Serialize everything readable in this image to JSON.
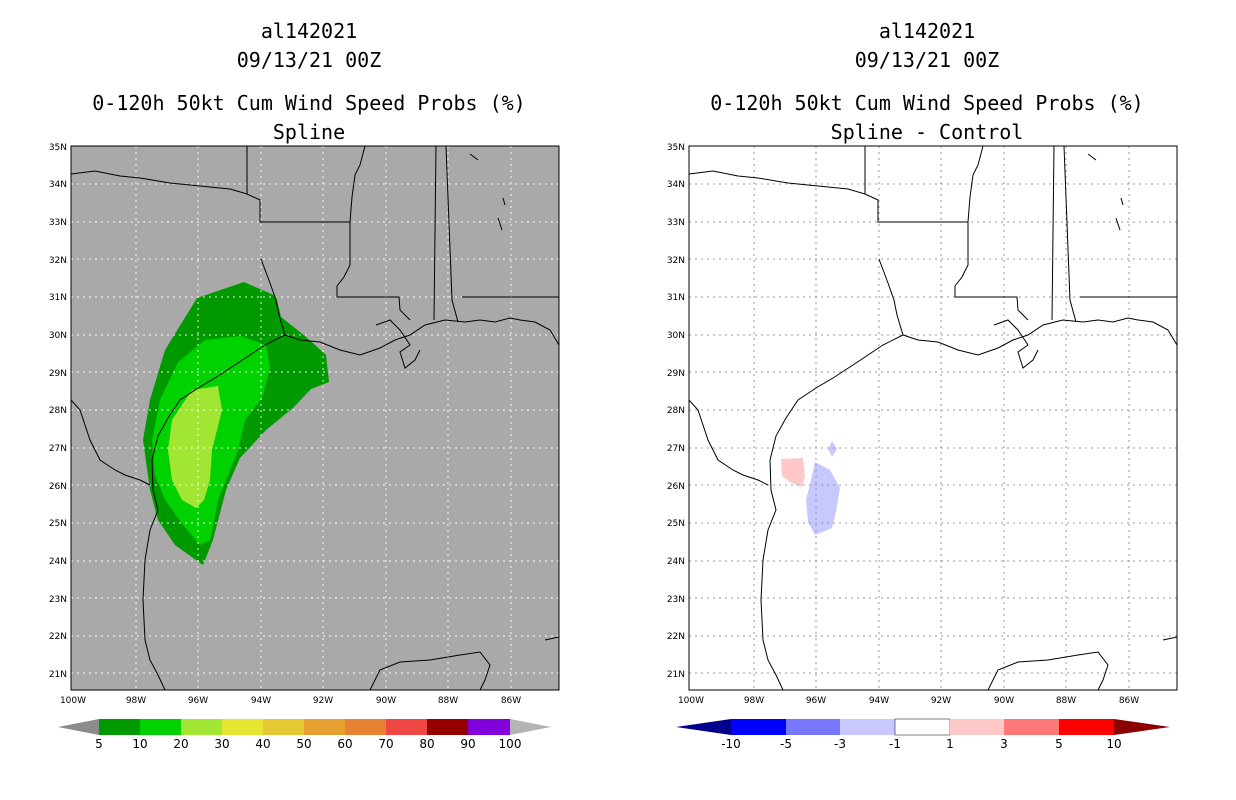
{
  "left": {
    "storm": "al142021",
    "date": "09/13/21 00Z",
    "product": "0-120h 50kt Cum Wind Speed Probs (%)",
    "subtitle": "Spline"
  },
  "right": {
    "storm": "al142021",
    "date": "09/13/21 00Z",
    "product": "0-120h 50kt Cum Wind Speed Probs (%)",
    "subtitle": "Spline - Control"
  },
  "lat_labels": [
    "35N",
    "34N",
    "33N",
    "32N",
    "31N",
    "30N",
    "29N",
    "28N",
    "27N",
    "26N",
    "25N",
    "24N",
    "23N",
    "22N",
    "21N"
  ],
  "lon_labels": [
    "100W",
    "98W",
    "96W",
    "94W",
    "92W",
    "90W",
    "88W",
    "86W"
  ],
  "left_colorbar": {
    "labels": [
      "5",
      "10",
      "20",
      "30",
      "40",
      "50",
      "60",
      "70",
      "80",
      "90",
      "100"
    ],
    "colors": [
      "#8c8c8c",
      "#009a00",
      "#00d200",
      "#a0e632",
      "#e6e632",
      "#e6c832",
      "#e6a032",
      "#e68232",
      "#f04646",
      "#960000",
      "#8200dc",
      "#b4b4b4"
    ]
  },
  "right_colorbar": {
    "labels": [
      "-10",
      "-5",
      "-3",
      "-1",
      "1",
      "3",
      "5",
      "10"
    ],
    "colors": [
      "#00008c",
      "#0000ff",
      "#7878ff",
      "#c8c8ff",
      "#ffffff",
      "#ffc8c8",
      "#ff7878",
      "#ff0000",
      "#8c0000"
    ]
  },
  "map_background": "#a9a9a9"
}
